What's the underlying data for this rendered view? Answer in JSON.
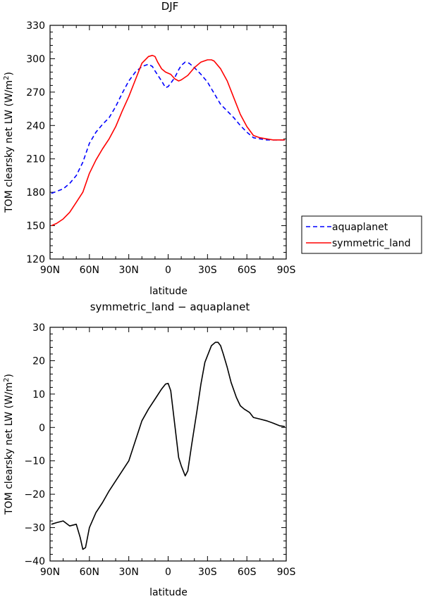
{
  "chart_data": [
    {
      "type": "line",
      "title": "DJF",
      "xlabel": "latitude",
      "ylabel": "TOM clearsky net LW (W/m",
      "ylabel_sup": "2",
      "ylabel_close": ")",
      "xlim": [
        -90,
        90
      ],
      "ylim": [
        120,
        330
      ],
      "xticks": [
        -90,
        -60,
        -30,
        0,
        30,
        60,
        90
      ],
      "xtick_labels": [
        "90N",
        "60N",
        "30N",
        "0",
        "30S",
        "60S",
        "90S"
      ],
      "yticks": [
        120,
        150,
        180,
        210,
        240,
        270,
        300,
        330
      ],
      "ytick_labels": [
        "120",
        "150",
        "180",
        "210",
        "240",
        "270",
        "300",
        "330"
      ],
      "legend": "right",
      "series": [
        {
          "name": "aquaplanet",
          "color": "#0000ff",
          "style": "dashed",
          "x": [
            -89,
            -80,
            -75,
            -70,
            -65,
            -60,
            -55,
            -50,
            -45,
            -40,
            -35,
            -30,
            -25,
            -20,
            -15,
            -12,
            -10,
            -5,
            -2,
            0,
            2,
            5,
            8,
            10,
            13,
            16,
            20,
            25,
            30,
            35,
            40,
            45,
            50,
            55,
            60,
            65,
            70,
            75,
            80,
            85,
            89
          ],
          "y": [
            179,
            183,
            188,
            195,
            207,
            224,
            234,
            241,
            247,
            257,
            269,
            280,
            288,
            293,
            295,
            293,
            289,
            280,
            274,
            275,
            278,
            283,
            290,
            294,
            297,
            296,
            292,
            286,
            279,
            269,
            259,
            253,
            247,
            240,
            234,
            229,
            228,
            227,
            227,
            227,
            227
          ]
        },
        {
          "name": "symmetric_land",
          "color": "#ff0000",
          "style": "solid",
          "x": [
            -89,
            -85,
            -80,
            -75,
            -70,
            -65,
            -60,
            -55,
            -50,
            -45,
            -40,
            -35,
            -30,
            -25,
            -20,
            -15,
            -12,
            -10,
            -8,
            -5,
            -2,
            0,
            2,
            5,
            8,
            10,
            15,
            20,
            25,
            30,
            33,
            35,
            40,
            45,
            50,
            55,
            60,
            65,
            70,
            75,
            80,
            85,
            89
          ],
          "y": [
            150,
            152,
            156,
            162,
            171,
            180,
            197,
            209,
            219,
            228,
            239,
            253,
            266,
            281,
            296,
            302,
            303,
            302,
            297,
            291,
            288,
            287,
            286,
            282,
            280,
            281,
            285,
            292,
            297,
            299,
            299,
            298,
            291,
            280,
            265,
            250,
            239,
            231,
            229,
            228,
            227,
            227,
            227
          ]
        }
      ]
    },
    {
      "type": "line",
      "title": "symmetric_land − aquaplanet",
      "xlabel": "latitude",
      "ylabel": "TOM clearsky net LW (W/m",
      "ylabel_sup": "2",
      "ylabel_close": ")",
      "xlim": [
        -90,
        90
      ],
      "ylim": [
        -40,
        30
      ],
      "xticks": [
        -90,
        -60,
        -30,
        0,
        30,
        60,
        90
      ],
      "xtick_labels": [
        "90N",
        "60N",
        "30N",
        "0",
        "30S",
        "60S",
        "90S"
      ],
      "yticks": [
        -40,
        -30,
        -20,
        -10,
        0,
        10,
        20,
        30
      ],
      "ytick_labels": [
        "−40",
        "−30",
        "−20",
        "−10",
        "0",
        "10",
        "20",
        "30"
      ],
      "series": [
        {
          "color": "#000000",
          "style": "solid",
          "x": [
            -89,
            -85,
            -80,
            -75,
            -70,
            -67,
            -65,
            -63,
            -60,
            -55,
            -50,
            -45,
            -40,
            -35,
            -30,
            -25,
            -20,
            -15,
            -10,
            -5,
            -2,
            0,
            2,
            5,
            8,
            10,
            13,
            15,
            18,
            22,
            25,
            28,
            30,
            33,
            36,
            38,
            40,
            42,
            45,
            48,
            52,
            55,
            58,
            60,
            62,
            65,
            70,
            75,
            80,
            85,
            89
          ],
          "y": [
            -29,
            -28.5,
            -28,
            -29.5,
            -29,
            -33,
            -36.5,
            -36,
            -30,
            -25.5,
            -22.5,
            -19,
            -16,
            -13,
            -10,
            -4,
            2,
            5.5,
            8.5,
            11.5,
            13,
            13.2,
            11,
            1,
            -9,
            -11.5,
            -14.5,
            -13,
            -5,
            5,
            13,
            19.5,
            21.5,
            24.5,
            25.5,
            25.5,
            24.5,
            22,
            18,
            13.5,
            9,
            6.5,
            5.5,
            5,
            4.5,
            3,
            2.5,
            2,
            1.3,
            0.5,
            0.3
          ]
        }
      ]
    }
  ]
}
